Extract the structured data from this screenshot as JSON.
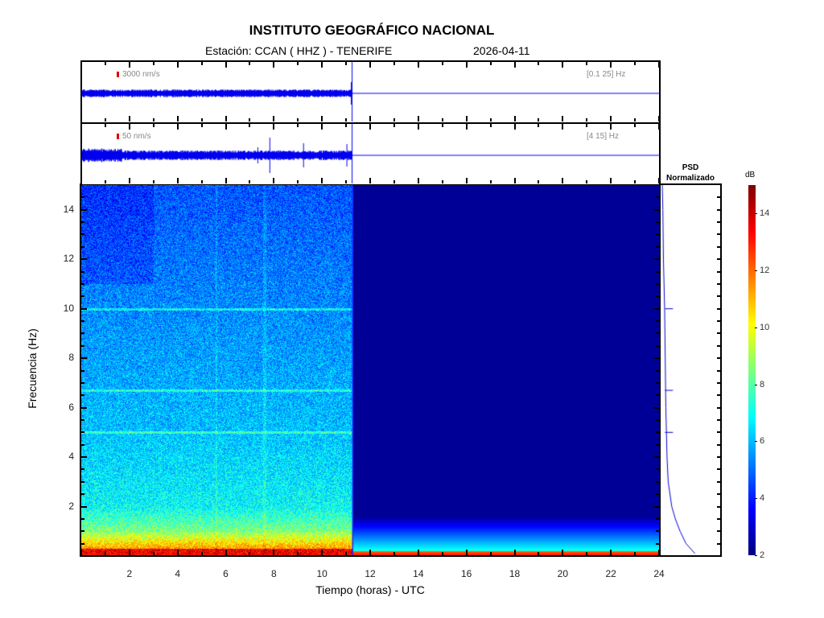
{
  "chart_data": {
    "type": "heatmap",
    "title": "INSTITUTO GEOGRÁFICO NACIONAL",
    "subtitle_station": "Estación:  CCAN ( HHZ ) - TENERIFE",
    "subtitle_date": "2026-04-11",
    "xlabel": "Tiempo (horas) - UTC",
    "ylabel": "Frecuencia  (Hz)",
    "xlim": [
      0,
      24
    ],
    "ylim": [
      0,
      15
    ],
    "x_ticks": [
      "2",
      "4",
      "6",
      "8",
      "10",
      "12",
      "14",
      "16",
      "18",
      "20",
      "22",
      "24"
    ],
    "y_ticks": [
      "2",
      "4",
      "6",
      "8",
      "10",
      "12",
      "14"
    ],
    "data_end_hour": 11.25,
    "traces": [
      {
        "scale": "3000 nm/s",
        "band": "[0.1 25] Hz"
      },
      {
        "scale": "50 nm/s",
        "band": "[4 15] Hz"
      }
    ],
    "psd_title": [
      "PSD",
      "Normalizado"
    ],
    "colorbar": {
      "label": "dB",
      "range": [
        2,
        15
      ],
      "ticks": [
        "2",
        "4",
        "6",
        "8",
        "10",
        "12",
        "14"
      ],
      "colormap": "jet"
    },
    "spectral_lines_hz": [
      10,
      6.7,
      5
    ],
    "psd_profile": {
      "freq": [
        0.1,
        0.5,
        1,
        1.5,
        2,
        3,
        4,
        5,
        6,
        8,
        10,
        12,
        14,
        15
      ],
      "value": [
        0.55,
        0.4,
        0.3,
        0.22,
        0.16,
        0.1,
        0.08,
        0.07,
        0.06,
        0.05,
        0.04,
        0.02,
        0.01,
        0.0
      ]
    }
  },
  "colors": {
    "trace": "#0000ee",
    "scale_marker": "#e00000"
  }
}
